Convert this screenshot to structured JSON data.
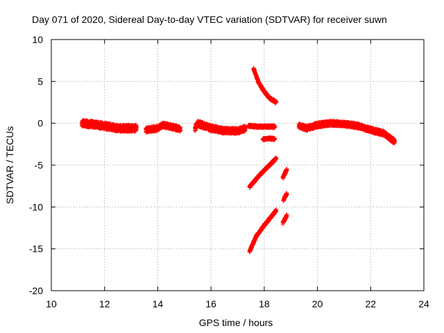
{
  "chart_data": {
    "type": "scatter",
    "title": "Day 071 of 2020, Sidereal Day-to-day VTEC variation (SDTVAR) for receiver suwn",
    "xlabel": "GPS time / hours",
    "ylabel": "SDTVAR / TECUs",
    "xlim": [
      10,
      24
    ],
    "ylim": [
      -20,
      10
    ],
    "xticks": [
      10,
      12,
      14,
      16,
      18,
      20,
      22,
      24
    ],
    "yticks": [
      10,
      5,
      0,
      -5,
      -10,
      -15,
      -20
    ],
    "grid": true,
    "marker": "plus",
    "color": "#ff0000",
    "segments": [
      {
        "x": [
          11.15,
          11.5,
          12.0,
          12.5,
          13.0,
          13.2
        ],
        "y": [
          0.0,
          -0.1,
          -0.3,
          -0.6,
          -0.6,
          -0.6
        ],
        "band": 0.8
      },
      {
        "x": [
          13.55,
          14.0,
          14.2,
          14.5,
          14.85
        ],
        "y": [
          -0.8,
          -0.6,
          -0.2,
          -0.4,
          -0.7
        ],
        "band": 0.6
      },
      {
        "x": [
          15.4,
          15.5,
          16.0,
          16.5,
          17.0,
          17.3
        ],
        "y": [
          -0.6,
          0.0,
          -0.6,
          -0.9,
          -0.9,
          -0.6
        ],
        "band": 0.7
      },
      {
        "x": [
          17.4,
          17.7,
          18.0,
          18.4
        ],
        "y": [
          -0.3,
          -0.4,
          -0.4,
          -0.4
        ],
        "band": 0.3
      },
      {
        "x": [
          17.6,
          17.8,
          18.0,
          18.2,
          18.45
        ],
        "y": [
          6.5,
          4.8,
          3.8,
          3.0,
          2.5
        ],
        "band": 0.3
      },
      {
        "x": [
          17.95,
          18.2,
          18.4
        ],
        "y": [
          -1.9,
          -1.8,
          -1.9
        ],
        "band": 0.25
      },
      {
        "x": [
          17.45,
          17.8,
          18.1,
          18.45
        ],
        "y": [
          -7.6,
          -6.3,
          -5.3,
          -4.2
        ],
        "band": 0.3
      },
      {
        "x": [
          17.45,
          17.7,
          18.0,
          18.45
        ],
        "y": [
          -15.3,
          -13.5,
          -12.2,
          -10.4
        ],
        "band": 0.3
      },
      {
        "x": [
          18.7,
          18.85
        ],
        "y": [
          -6.5,
          -5.5
        ],
        "band": 0.3
      },
      {
        "x": [
          18.72,
          18.85
        ],
        "y": [
          -9.2,
          -8.4
        ],
        "band": 0.3
      },
      {
        "x": [
          18.7,
          18.85
        ],
        "y": [
          -11.9,
          -11.0
        ],
        "band": 0.3
      },
      {
        "x": [
          19.3,
          19.6,
          20.0,
          20.5,
          21.0,
          21.5,
          22.0,
          22.5,
          22.9
        ],
        "y": [
          -0.3,
          -0.6,
          -0.2,
          0.0,
          -0.1,
          -0.3,
          -0.8,
          -1.2,
          -2.2
        ],
        "band": 0.6
      }
    ]
  }
}
